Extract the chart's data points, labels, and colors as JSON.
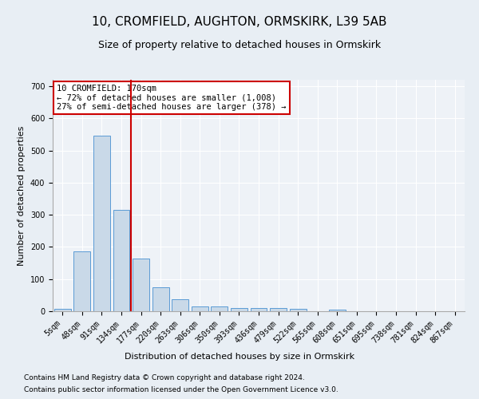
{
  "title1": "10, CROMFIELD, AUGHTON, ORMSKIRK, L39 5AB",
  "title2": "Size of property relative to detached houses in Ormskirk",
  "xlabel": "Distribution of detached houses by size in Ormskirk",
  "ylabel": "Number of detached properties",
  "bar_labels": [
    "5sqm",
    "48sqm",
    "91sqm",
    "134sqm",
    "177sqm",
    "220sqm",
    "263sqm",
    "306sqm",
    "350sqm",
    "393sqm",
    "436sqm",
    "479sqm",
    "522sqm",
    "565sqm",
    "608sqm",
    "651sqm",
    "695sqm",
    "738sqm",
    "781sqm",
    "824sqm",
    "867sqm"
  ],
  "bar_values": [
    8,
    185,
    545,
    315,
    165,
    75,
    38,
    15,
    15,
    10,
    10,
    10,
    8,
    0,
    5,
    0,
    0,
    0,
    0,
    0,
    0
  ],
  "bar_color": "#c9d9e8",
  "bar_edge_color": "#5b9bd5",
  "red_line_x": 3.5,
  "annotation_text": "10 CROMFIELD: 170sqm\n← 72% of detached houses are smaller (1,008)\n27% of semi-detached houses are larger (378) →",
  "annotation_box_color": "#ffffff",
  "annotation_box_edge": "#cc0000",
  "red_line_color": "#cc0000",
  "ylim": [
    0,
    720
  ],
  "yticks": [
    0,
    100,
    200,
    300,
    400,
    500,
    600,
    700
  ],
  "footnote1": "Contains HM Land Registry data © Crown copyright and database right 2024.",
  "footnote2": "Contains public sector information licensed under the Open Government Licence v3.0.",
  "bg_color": "#e8eef4",
  "plot_bg_color": "#eef2f7",
  "title1_fontsize": 11,
  "title2_fontsize": 9,
  "xlabel_fontsize": 8,
  "ylabel_fontsize": 8,
  "annotation_fontsize": 7.5,
  "footnote_fontsize": 6.5,
  "tick_fontsize": 7
}
